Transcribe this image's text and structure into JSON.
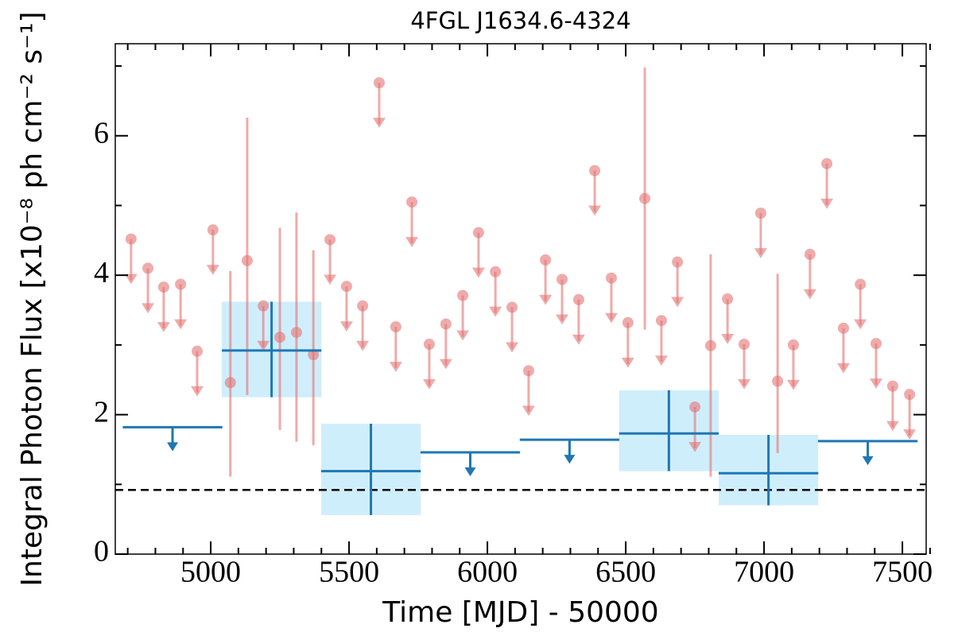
{
  "chart_data": {
    "type": "lightcurve",
    "title": "4FGL J1634.6-4324",
    "xlabel": "Time [MJD] - 50000",
    "ylabel": "Integral Photon Flux [x10⁻⁸ ph cm⁻² s⁻¹]",
    "xlim": [
      4655,
      7586
    ],
    "ylim": [
      0,
      7.32
    ],
    "xticks": [
      5000,
      5500,
      6000,
      6500,
      7000,
      7500
    ],
    "xminorticks": [
      4700,
      4800,
      4900,
      5100,
      5200,
      5300,
      5400,
      5600,
      5700,
      5800,
      5900,
      6100,
      6200,
      6300,
      6400,
      6600,
      6700,
      6800,
      6900,
      7100,
      7200,
      7300,
      7400,
      7600
    ],
    "yticks": [
      0,
      2,
      4,
      6
    ],
    "yminorticks": [
      1,
      3,
      5,
      7
    ],
    "hline": 0.92,
    "series": [
      {
        "color": "#e57373",
        "style": "points",
        "x": [
          4712,
          4773,
          4830,
          4891,
          4951,
          5008,
          5071,
          5132,
          5190,
          5250,
          5310,
          5371,
          5431,
          5491,
          5549,
          5609,
          5669,
          5727,
          5790,
          5850,
          5911,
          5968,
          6029,
          6089,
          6149,
          6210,
          6270,
          6330,
          6388,
          6448,
          6508,
          6569,
          6629,
          6687,
          6750,
          6807,
          6868,
          6928,
          6988,
          7049,
          7106,
          7166,
          7227,
          7287,
          7348,
          7405,
          7465,
          7526
        ],
        "values": [
          4.52,
          4.1,
          3.83,
          3.87,
          2.91,
          4.65,
          2.46,
          4.21,
          3.56,
          3.11,
          3.18,
          2.86,
          4.51,
          3.84,
          3.56,
          6.76,
          3.26,
          5.05,
          3.01,
          3.3,
          3.71,
          4.61,
          4.05,
          3.54,
          2.63,
          4.22,
          3.94,
          3.65,
          5.5,
          3.96,
          3.32,
          5.1,
          3.35,
          4.19,
          2.11,
          2.99,
          3.66,
          3.01,
          4.89,
          2.48,
          3.0,
          4.3,
          5.6,
          3.24,
          3.87,
          3.02,
          2.41,
          2.29
        ],
        "err_plus": [
          null,
          null,
          null,
          null,
          null,
          null,
          1.6,
          2.05,
          null,
          1.57,
          1.72,
          1.5,
          null,
          null,
          null,
          null,
          null,
          null,
          null,
          null,
          null,
          null,
          null,
          null,
          null,
          null,
          null,
          null,
          null,
          null,
          null,
          1.88,
          null,
          null,
          null,
          1.31,
          null,
          null,
          null,
          1.54,
          null,
          null,
          null,
          null,
          null,
          null,
          null,
          null
        ],
        "err_minus": [
          null,
          null,
          null,
          null,
          null,
          null,
          1.35,
          1.93,
          null,
          1.33,
          1.57,
          1.3,
          null,
          null,
          null,
          null,
          null,
          null,
          null,
          null,
          null,
          null,
          null,
          null,
          null,
          null,
          null,
          null,
          null,
          null,
          null,
          1.88,
          null,
          null,
          null,
          1.88,
          null,
          null,
          null,
          1.03,
          null,
          null,
          null,
          null,
          null,
          null,
          null,
          null
        ]
      },
      {
        "color": "#1f77b4",
        "box_color": "#cfeefc",
        "style": "bins",
        "x": [
          4862,
          5220,
          5579,
          5938,
          6297,
          6656,
          7016,
          7375
        ],
        "xerr": [
          180,
          180,
          180,
          180,
          180,
          180,
          180,
          180
        ],
        "values": [
          1.82,
          2.92,
          1.19,
          1.46,
          1.64,
          1.73,
          1.16,
          1.62
        ],
        "err_plus": [
          null,
          0.7,
          0.68,
          null,
          null,
          0.62,
          0.55,
          null
        ],
        "err_minus": [
          null,
          0.67,
          0.63,
          null,
          null,
          0.54,
          0.46,
          null
        ]
      }
    ]
  }
}
